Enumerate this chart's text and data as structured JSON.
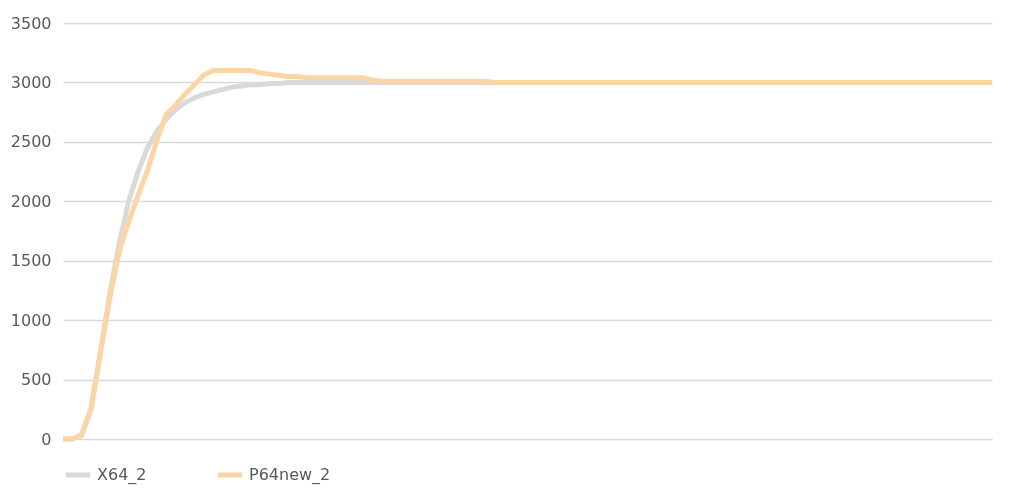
{
  "chart_data": {
    "type": "line",
    "categories": [
      null,
      null,
      null,
      null,
      null,
      null,
      null,
      null,
      null,
      null,
      null,
      null,
      null,
      null,
      null,
      null,
      null,
      null,
      null,
      null,
      null,
      null,
      null,
      null,
      null,
      null,
      null,
      null,
      null,
      null,
      null,
      null,
      null,
      null,
      null,
      null,
      null,
      null,
      null,
      null,
      null,
      null,
      null,
      null,
      null,
      null,
      null,
      null,
      null,
      null,
      null,
      null,
      null,
      null,
      null,
      null,
      null,
      null,
      null,
      null,
      null,
      null,
      null,
      null,
      null,
      null,
      null,
      null,
      null,
      null,
      null,
      null,
      null,
      null,
      null,
      null,
      null,
      null,
      null,
      null,
      null,
      null,
      null,
      null,
      null,
      null,
      null,
      null,
      null,
      null,
      null,
      null,
      null,
      null,
      null,
      null,
      null,
      null,
      null,
      null
    ],
    "series": [
      {
        "name": "X64_2",
        "color": "#d9d9d9",
        "values": [
          0,
          0,
          30,
          270,
          740,
          1230,
          1650,
          2000,
          2250,
          2450,
          2590,
          2690,
          2770,
          2830,
          2870,
          2900,
          2920,
          2940,
          2960,
          2970,
          2980,
          2980,
          2990,
          2990,
          3000,
          3000,
          3000,
          3000,
          3000,
          3000,
          3000,
          3000,
          3000,
          3000,
          3000,
          3000,
          3000,
          3000,
          3000,
          3000,
          3000,
          3000,
          3000,
          3000,
          3000,
          3000,
          3000,
          3000,
          3000,
          3000,
          3000,
          3000,
          3000,
          3000,
          3000,
          3000,
          3000,
          3000,
          3000,
          3000,
          3000,
          3000,
          3000,
          3000,
          3000,
          3000,
          3000,
          3000,
          3000,
          3000,
          3000,
          3000,
          3000,
          3000,
          3000,
          3000,
          3000,
          3000,
          3000,
          3000,
          3000,
          3000,
          3000,
          3000,
          3000,
          3000,
          3000,
          3000,
          3000,
          3000,
          3000,
          3000,
          3000,
          3000,
          3000,
          3000,
          3000,
          3000,
          3000,
          3000
        ]
      },
      {
        "name": "P64new_2",
        "color": "#fcd5a4",
        "values": [
          0,
          0,
          40,
          250,
          730,
          1190,
          1580,
          1830,
          2050,
          2260,
          2510,
          2730,
          2810,
          2900,
          2980,
          3060,
          3100,
          3100,
          3100,
          3100,
          3100,
          3080,
          3070,
          3060,
          3050,
          3050,
          3040,
          3040,
          3040,
          3040,
          3040,
          3040,
          3040,
          3020,
          3010,
          3010,
          3010,
          3010,
          3010,
          3010,
          3010,
          3010,
          3010,
          3010,
          3010,
          3010,
          3000,
          3000,
          3000,
          3000,
          3000,
          3000,
          3000,
          3000,
          3000,
          3000,
          3000,
          3000,
          3000,
          3000,
          3000,
          3000,
          3000,
          3000,
          3000,
          3000,
          3000,
          3000,
          3000,
          3000,
          3000,
          3000,
          3000,
          3000,
          3000,
          3000,
          3000,
          3000,
          3000,
          3000,
          3000,
          3000,
          3000,
          3000,
          3000,
          3000,
          3000,
          3000,
          3000,
          3000,
          3000,
          3000,
          3000,
          3000,
          3000,
          3000,
          3000,
          3000,
          3000,
          3000
        ]
      }
    ],
    "ylim": [
      0,
      3500
    ],
    "yticks": [
      0,
      500,
      1000,
      1500,
      2000,
      2500,
      3000,
      3500
    ],
    "grid": "y",
    "legend": "bottom",
    "tick_labels": "y",
    "marker": "none",
    "line_style": "solid"
  }
}
